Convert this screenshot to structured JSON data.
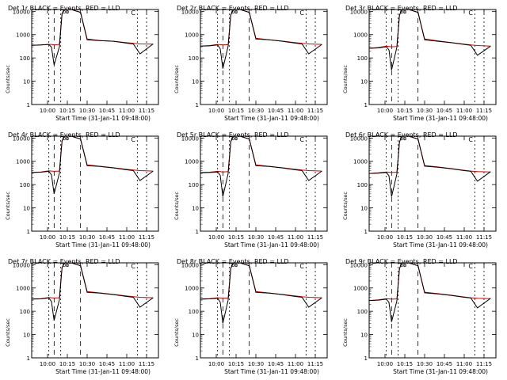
{
  "common": {
    "ylabel": "Counts/sec",
    "xlabel": "Start Time (31-Jan-11 09:48:00)",
    "title_suffix": "BLACK = Events, RED = LLD",
    "x_ticks": [
      "10:00",
      "10:15",
      "10:30",
      "10:45",
      "11:00",
      "11:15"
    ],
    "y_ticks": [
      "1",
      "10",
      "100",
      "1000",
      "10000"
    ],
    "marker_label": "C",
    "series_colors": {
      "events": "#000000",
      "lld": "#cc0000"
    }
  },
  "chart_data": [
    {
      "type": "line",
      "title": "Det 1r",
      "y_scale": "log",
      "ylim": [
        1,
        12000
      ],
      "xlim": [
        "09:48",
        "11:24"
      ],
      "x_time": [
        "09:48",
        "09:55",
        "10:01",
        "10:03",
        "10:05",
        "10:09",
        "10:11",
        "10:13",
        "10:18",
        "10:25",
        "10:30",
        "10:40",
        "10:50",
        "11:00",
        "11:05",
        "11:10",
        "11:20"
      ],
      "series": [
        {
          "key": "events",
          "values": [
            350,
            360,
            380,
            290,
            50,
            300,
            8000,
            12000,
            12000,
            9000,
            600,
            550,
            520,
            430,
            400,
            150,
            400
          ]
        },
        {
          "key": "lld",
          "values": [
            350,
            360,
            380,
            380,
            360,
            380,
            8000,
            12000,
            12000,
            9000,
            650,
            560,
            520,
            450,
            420,
            400,
            390
          ]
        }
      ]
    },
    {
      "type": "line",
      "title": "Det 2r",
      "y_scale": "log",
      "ylim": [
        1,
        12000
      ],
      "xlim": [
        "09:48",
        "11:24"
      ],
      "x_time": [
        "09:48",
        "09:55",
        "10:01",
        "10:03",
        "10:05",
        "10:09",
        "10:11",
        "10:13",
        "10:18",
        "10:25",
        "10:30",
        "10:40",
        "10:50",
        "11:00",
        "11:05",
        "11:10",
        "11:20"
      ],
      "series": [
        {
          "key": "events",
          "values": [
            320,
            330,
            360,
            250,
            35,
            320,
            7000,
            12000,
            12000,
            9000,
            650,
            600,
            520,
            430,
            400,
            150,
            380
          ]
        },
        {
          "key": "lld",
          "values": [
            320,
            340,
            380,
            370,
            360,
            370,
            7000,
            12000,
            12000,
            9000,
            700,
            600,
            530,
            450,
            420,
            400,
            380
          ]
        }
      ]
    },
    {
      "type": "line",
      "title": "Det 3r",
      "y_scale": "log",
      "ylim": [
        1,
        12000
      ],
      "xlim": [
        "09:48",
        "11:24"
      ],
      "x_time": [
        "09:48",
        "09:55",
        "10:01",
        "10:03",
        "10:05",
        "10:09",
        "10:11",
        "10:13",
        "10:18",
        "10:25",
        "10:30",
        "10:40",
        "10:50",
        "11:00",
        "11:05",
        "11:10",
        "11:20"
      ],
      "series": [
        {
          "key": "events",
          "values": [
            260,
            270,
            300,
            220,
            30,
            290,
            7000,
            12000,
            12000,
            9000,
            600,
            520,
            450,
            380,
            350,
            130,
            320
          ]
        },
        {
          "key": "lld",
          "values": [
            260,
            280,
            320,
            310,
            300,
            310,
            7000,
            12000,
            12000,
            9000,
            650,
            540,
            460,
            390,
            360,
            340,
            320
          ]
        }
      ]
    },
    {
      "type": "line",
      "title": "Det 4r",
      "y_scale": "log",
      "ylim": [
        1,
        12000
      ],
      "xlim": [
        "09:48",
        "11:24"
      ],
      "x_time": [
        "09:48",
        "09:55",
        "10:01",
        "10:03",
        "10:05",
        "10:09",
        "10:11",
        "10:13",
        "10:18",
        "10:25",
        "10:30",
        "10:40",
        "10:50",
        "11:00",
        "11:05",
        "11:10",
        "11:20"
      ],
      "series": [
        {
          "key": "events",
          "values": [
            330,
            340,
            370,
            260,
            40,
            310,
            7500,
            12000,
            12000,
            9000,
            650,
            600,
            520,
            430,
            400,
            150,
            380
          ]
        },
        {
          "key": "lld",
          "values": [
            330,
            350,
            390,
            380,
            370,
            380,
            7500,
            12000,
            12000,
            9000,
            700,
            610,
            530,
            450,
            420,
            400,
            380
          ]
        }
      ]
    },
    {
      "type": "line",
      "title": "Det 5r",
      "y_scale": "log",
      "ylim": [
        1,
        12000
      ],
      "xlim": [
        "09:48",
        "11:24"
      ],
      "x_time": [
        "09:48",
        "09:55",
        "10:01",
        "10:03",
        "10:05",
        "10:09",
        "10:11",
        "10:13",
        "10:18",
        "10:25",
        "10:30",
        "10:40",
        "10:50",
        "11:00",
        "11:05",
        "11:10",
        "11:20"
      ],
      "series": [
        {
          "key": "events",
          "values": [
            320,
            330,
            350,
            250,
            30,
            300,
            7000,
            12000,
            12000,
            9000,
            650,
            600,
            520,
            430,
            400,
            150,
            380
          ]
        },
        {
          "key": "lld",
          "values": [
            330,
            340,
            370,
            360,
            350,
            360,
            7000,
            12000,
            12000,
            9000,
            700,
            610,
            530,
            450,
            420,
            400,
            380
          ]
        }
      ]
    },
    {
      "type": "line",
      "title": "Det 6r",
      "y_scale": "log",
      "ylim": [
        1,
        12000
      ],
      "xlim": [
        "09:48",
        "11:24"
      ],
      "x_time": [
        "09:48",
        "09:55",
        "10:01",
        "10:03",
        "10:05",
        "10:09",
        "10:11",
        "10:13",
        "10:18",
        "10:25",
        "10:30",
        "10:40",
        "10:50",
        "11:00",
        "11:05",
        "11:10",
        "11:20"
      ],
      "series": [
        {
          "key": "events",
          "values": [
            300,
            310,
            330,
            240,
            30,
            290,
            7000,
            12000,
            12000,
            9000,
            620,
            560,
            480,
            400,
            370,
            140,
            360
          ]
        },
        {
          "key": "lld",
          "values": [
            300,
            320,
            350,
            340,
            330,
            340,
            7000,
            12000,
            12000,
            9000,
            660,
            570,
            490,
            410,
            380,
            360,
            350
          ]
        }
      ]
    },
    {
      "type": "line",
      "title": "Det 7r",
      "y_scale": "log",
      "ylim": [
        1,
        12000
      ],
      "xlim": [
        "09:48",
        "11:24"
      ],
      "x_time": [
        "09:48",
        "09:55",
        "10:01",
        "10:03",
        "10:05",
        "10:09",
        "10:11",
        "10:13",
        "10:18",
        "10:25",
        "10:30",
        "10:40",
        "10:50",
        "11:00",
        "11:05",
        "11:10",
        "11:20"
      ],
      "series": [
        {
          "key": "events",
          "values": [
            330,
            340,
            370,
            260,
            40,
            310,
            7500,
            12000,
            12000,
            9000,
            650,
            600,
            520,
            430,
            400,
            150,
            380
          ]
        },
        {
          "key": "lld",
          "values": [
            340,
            350,
            390,
            380,
            370,
            380,
            7500,
            12000,
            12000,
            9000,
            700,
            610,
            530,
            450,
            420,
            400,
            380
          ]
        }
      ]
    },
    {
      "type": "line",
      "title": "Det 8r",
      "y_scale": "log",
      "ylim": [
        1,
        12000
      ],
      "xlim": [
        "09:48",
        "11:24"
      ],
      "x_time": [
        "09:48",
        "09:55",
        "10:01",
        "10:03",
        "10:05",
        "10:09",
        "10:11",
        "10:13",
        "10:18",
        "10:25",
        "10:30",
        "10:40",
        "10:50",
        "11:00",
        "11:05",
        "11:10",
        "11:20"
      ],
      "series": [
        {
          "key": "events",
          "values": [
            330,
            340,
            360,
            250,
            30,
            300,
            7000,
            12000,
            12000,
            9000,
            650,
            600,
            520,
            430,
            400,
            150,
            380
          ]
        },
        {
          "key": "lld",
          "values": [
            340,
            350,
            380,
            370,
            360,
            370,
            7000,
            12000,
            12000,
            9000,
            700,
            610,
            530,
            450,
            420,
            400,
            380
          ]
        }
      ]
    },
    {
      "type": "line",
      "title": "Det 9r",
      "y_scale": "log",
      "ylim": [
        1,
        12000
      ],
      "xlim": [
        "09:48",
        "11:24"
      ],
      "x_time": [
        "09:48",
        "09:55",
        "10:01",
        "10:03",
        "10:05",
        "10:09",
        "10:11",
        "10:13",
        "10:18",
        "10:25",
        "10:30",
        "10:40",
        "10:50",
        "11:00",
        "11:05",
        "11:10",
        "11:20"
      ],
      "series": [
        {
          "key": "events",
          "values": [
            290,
            300,
            330,
            240,
            35,
            280,
            7000,
            12000,
            12000,
            9000,
            620,
            560,
            480,
            400,
            370,
            140,
            360
          ]
        },
        {
          "key": "lld",
          "values": [
            290,
            310,
            350,
            340,
            330,
            340,
            7000,
            12000,
            12000,
            9000,
            660,
            570,
            490,
            410,
            380,
            360,
            350
          ]
        }
      ]
    }
  ]
}
